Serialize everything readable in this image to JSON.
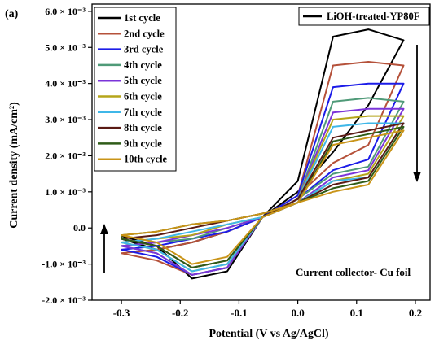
{
  "chart_data": {
    "type": "line",
    "panel_label": "(a)",
    "xlabel": "Potential (V vs Ag/AgCl)",
    "ylabel": "Current density (mA/cm²)",
    "annotation": "Current collector- Cu foil",
    "sample_label": "LiOH-treated-YP80F",
    "xlim": [
      -0.35,
      0.225
    ],
    "ylim": [
      -0.002,
      0.0062
    ],
    "x_ticks": [
      {
        "value": -0.3,
        "label": "-0.3"
      },
      {
        "value": -0.2,
        "label": "-0.2"
      },
      {
        "value": -0.1,
        "label": "-0.1"
      },
      {
        "value": 0.0,
        "label": "0.0"
      },
      {
        "value": 0.1,
        "label": "0.1"
      },
      {
        "value": 0.2,
        "label": "0.2"
      }
    ],
    "y_ticks": [
      {
        "value": -0.002,
        "label": "-2.0 × 10⁻³"
      },
      {
        "value": -0.001,
        "label": "-1.0 × 10⁻³"
      },
      {
        "value": 0.0,
        "label": "0.0"
      },
      {
        "value": 0.001,
        "label": "1.0 × 10⁻³"
      },
      {
        "value": 0.002,
        "label": "2.0 × 10⁻³"
      },
      {
        "value": 0.003,
        "label": "3.0 × 10⁻³"
      },
      {
        "value": 0.004,
        "label": "4.0 × 10⁻³"
      },
      {
        "value": 0.005,
        "label": "5.0 × 10⁻³"
      },
      {
        "value": 0.006,
        "label": "6.0 × 10⁻³"
      }
    ],
    "grid": false,
    "legend_position": "top-left",
    "arrows": [
      "down-arrow-right",
      "up-arrow-left"
    ],
    "x_anodic": [
      -0.3,
      -0.24,
      -0.18,
      -0.12,
      -0.06,
      0.0,
      0.06,
      0.12,
      0.18
    ],
    "x_cathodic": [
      0.18,
      0.12,
      0.06,
      0.0,
      -0.06,
      -0.12,
      -0.18,
      -0.24,
      -0.3
    ],
    "series": [
      {
        "name": "1st cycle",
        "color": "#000000",
        "anodic": [
          -0.00022,
          -0.0005,
          -0.0014,
          -0.0012,
          0.0003,
          0.0013,
          0.0053,
          0.0055,
          0.0052
        ],
        "cathodic": [
          0.0052,
          0.0034,
          0.0021,
          0.001,
          0.0003,
          -0.0001,
          -0.0004,
          -0.0006,
          -0.0003
        ]
      },
      {
        "name": "2nd cycle",
        "color": "#b5513a",
        "anodic": [
          -0.0007,
          -0.0009,
          -0.0013,
          -0.0011,
          0.0003,
          0.0009,
          0.0045,
          0.0046,
          0.0045
        ],
        "cathodic": [
          0.0045,
          0.0023,
          0.0018,
          0.0009,
          0.0003,
          -0.0001,
          -0.0004,
          -0.0006,
          -0.0007
        ]
      },
      {
        "name": "3rd cycle",
        "color": "#1c1ce8",
        "anodic": [
          -0.0006,
          -0.0008,
          -0.0013,
          -0.0011,
          0.0003,
          0.0009,
          0.0039,
          0.004,
          0.004
        ],
        "cathodic": [
          0.004,
          0.0019,
          0.0016,
          0.0008,
          0.0003,
          -0.0001,
          -0.0003,
          -0.0005,
          -0.0006
        ]
      },
      {
        "name": "4th cycle",
        "color": "#4f9a78",
        "anodic": [
          -0.0005,
          -0.0007,
          -0.0013,
          -0.0011,
          0.0003,
          0.0008,
          0.0035,
          0.0036,
          0.0035
        ],
        "cathodic": [
          0.0035,
          0.0017,
          0.0015,
          0.0008,
          0.0003,
          0.0,
          -0.0003,
          -0.0004,
          -0.0005
        ]
      },
      {
        "name": "5th cycle",
        "color": "#7b34d9",
        "anodic": [
          -0.0005,
          -0.0007,
          -0.0013,
          -0.0011,
          0.0003,
          0.0008,
          0.0032,
          0.0033,
          0.0033
        ],
        "cathodic": [
          0.0033,
          0.0016,
          0.0014,
          0.0007,
          0.0003,
          0.0,
          -0.0002,
          -0.0004,
          -0.0005
        ]
      },
      {
        "name": "6th cycle",
        "color": "#b5a51a",
        "anodic": [
          -0.0004,
          -0.0006,
          -0.0012,
          -0.001,
          0.0003,
          0.0008,
          0.003,
          0.0031,
          0.0031
        ],
        "cathodic": [
          0.0031,
          0.0015,
          0.0013,
          0.0007,
          0.0003,
          0.0001,
          -0.0002,
          -0.0003,
          -0.0004
        ]
      },
      {
        "name": "7th cycle",
        "color": "#3fb7e8",
        "anodic": [
          -0.0004,
          -0.0006,
          -0.0012,
          -0.001,
          0.0003,
          0.0008,
          0.0028,
          0.0029,
          0.0029
        ],
        "cathodic": [
          0.0029,
          0.0014,
          0.0013,
          0.0007,
          0.0003,
          0.0001,
          -0.0001,
          -0.0003,
          -0.0004
        ]
      },
      {
        "name": "8th cycle",
        "color": "#5a1a14",
        "anodic": [
          -0.0003,
          -0.0005,
          -0.0011,
          -0.0009,
          0.0003,
          0.0008,
          0.0025,
          0.0027,
          0.0029
        ],
        "cathodic": [
          0.0029,
          0.0014,
          0.0012,
          0.0007,
          0.0004,
          0.0002,
          0.0,
          -0.0002,
          -0.0003
        ]
      },
      {
        "name": "9th cycle",
        "color": "#2f5c18",
        "anodic": [
          -0.0003,
          -0.0005,
          -0.0011,
          -0.0009,
          0.0003,
          0.0007,
          0.0024,
          0.0026,
          0.0028
        ],
        "cathodic": [
          0.0028,
          0.0013,
          0.0011,
          0.0007,
          0.0004,
          0.0002,
          0.0001,
          -0.0001,
          -0.0002
        ]
      },
      {
        "name": "10th cycle",
        "color": "#c99418",
        "anodic": [
          -0.0002,
          -0.0004,
          -0.001,
          -0.0008,
          0.0003,
          0.0007,
          0.0023,
          0.0025,
          0.0027
        ],
        "cathodic": [
          0.0027,
          0.0012,
          0.001,
          0.0007,
          0.0004,
          0.0002,
          0.0001,
          -0.0001,
          -0.0002
        ]
      }
    ]
  }
}
